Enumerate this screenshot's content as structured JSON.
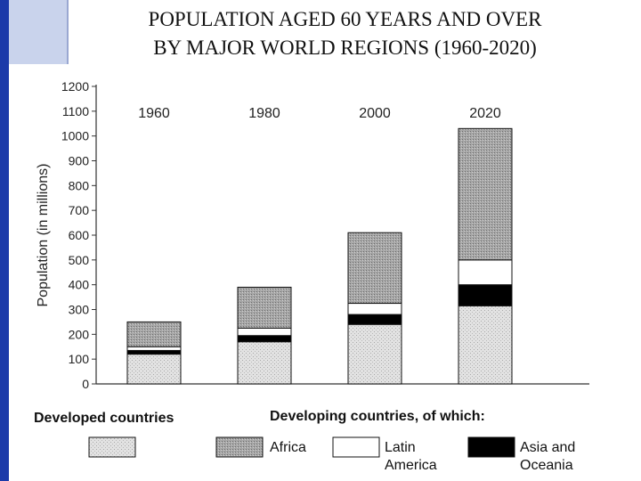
{
  "title_line1": "POPULATION  AGED 60  YEARS  AND  OVER",
  "title_line2": "BY  MAJOR  WORLD  REGIONS  (1960-2020)",
  "chart_data": {
    "type": "bar",
    "stacked": true,
    "categories": [
      "1960",
      "1980",
      "2000",
      "2020"
    ],
    "series": [
      {
        "name": "Developed countries",
        "values": [
          120,
          170,
          240,
          315
        ]
      },
      {
        "name": "Asia and Oceania",
        "values": [
          15,
          25,
          40,
          85
        ]
      },
      {
        "name": "Latin America",
        "values": [
          15,
          30,
          45,
          100
        ]
      },
      {
        "name": "Africa",
        "values": [
          100,
          165,
          285,
          530
        ]
      }
    ],
    "ylabel": "Population (in millions)",
    "xlabel": "",
    "ylim": [
      0,
      1200
    ],
    "yticks": [
      0,
      100,
      200,
      300,
      400,
      500,
      600,
      700,
      800,
      900,
      1000,
      1100,
      1200
    ],
    "grid": false,
    "legend": {
      "position": "bottom",
      "developed_heading": "Developed countries",
      "developing_heading": "Developing countries, of which:",
      "items": [
        {
          "series": "Developed countries",
          "label_lines": [
            ""
          ]
        },
        {
          "series": "Africa",
          "label_lines": [
            "Africa"
          ]
        },
        {
          "series": "Latin America",
          "label_lines": [
            "Latin",
            "America"
          ]
        },
        {
          "series": "Asia and Oceania",
          "label_lines": [
            "Asia and",
            "Oceania"
          ]
        }
      ]
    },
    "colors": {
      "Developed countries": "#dcdcdc",
      "Africa": "#9a9a9a",
      "Latin America": "#ffffff",
      "Asia and Oceania": "#000000"
    }
  }
}
